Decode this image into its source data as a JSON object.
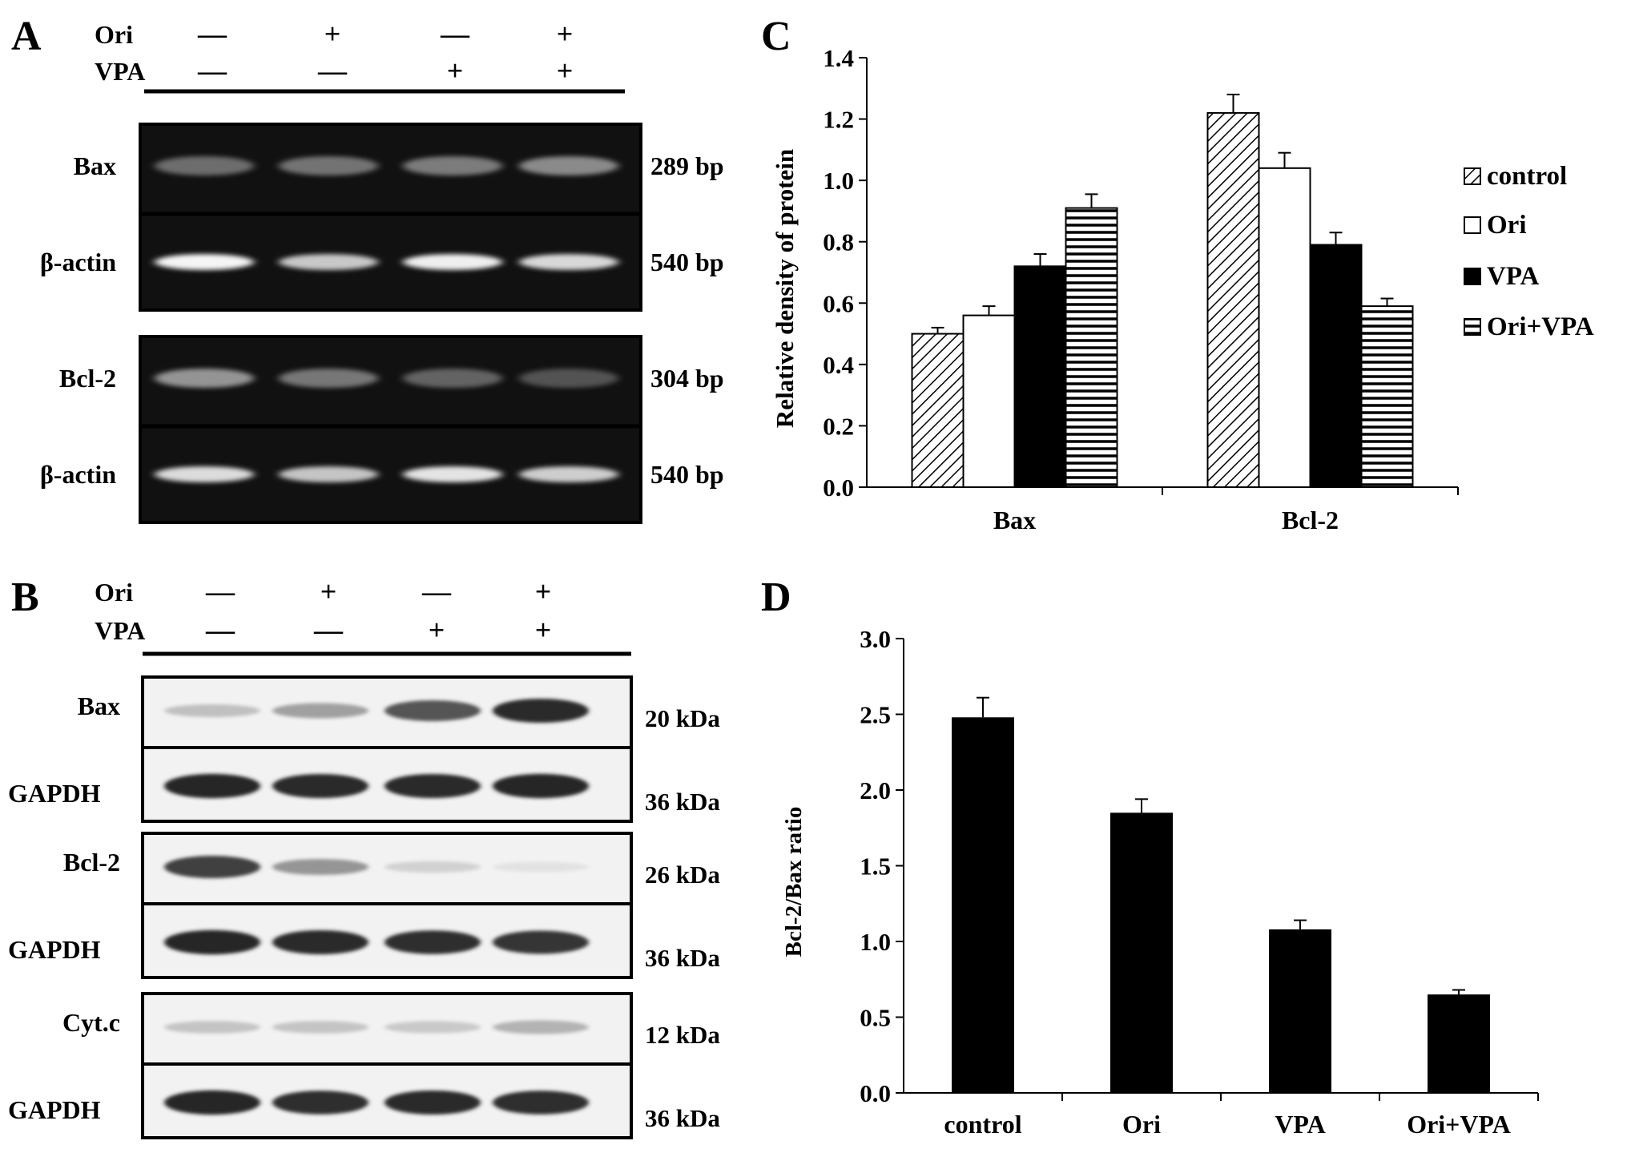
{
  "panels": {
    "A": {
      "letter": "A",
      "treatments": [
        {
          "label": "Ori",
          "signs": [
            "—",
            "+",
            "—",
            "+"
          ]
        },
        {
          "label": "VPA",
          "signs": [
            "—",
            "—",
            "+",
            "+"
          ]
        }
      ],
      "blocks": [
        {
          "rows": [
            {
              "label": "Bax",
              "size": "289 bp",
              "bands": [
                0.25,
                0.28,
                0.33,
                0.4
              ]
            },
            {
              "label": "β-actin",
              "size": "540 bp",
              "bands": [
                0.95,
                0.72,
                0.92,
                0.8
              ]
            }
          ]
        },
        {
          "rows": [
            {
              "label": "Bcl-2",
              "size": "304 bp",
              "bands": [
                0.45,
                0.3,
                0.2,
                0.12
              ]
            },
            {
              "label": "β-actin",
              "size": "540 bp",
              "bands": [
                0.82,
                0.7,
                0.86,
                0.75
              ]
            }
          ]
        }
      ]
    },
    "B": {
      "letter": "B",
      "treatments": [
        {
          "label": "Ori",
          "signs": [
            "—",
            "+",
            "—",
            "+"
          ]
        },
        {
          "label": "VPA",
          "signs": [
            "—",
            "—",
            "+",
            "+"
          ]
        }
      ],
      "blocks": [
        {
          "rows": [
            {
              "label": "Bax",
              "size": "20 kDa",
              "bands": [
                0.2,
                0.35,
                0.7,
                0.9
              ]
            },
            {
              "label": "GAPDH",
              "size": "36 kDa",
              "bands": [
                0.92,
                0.9,
                0.9,
                0.92
              ]
            }
          ]
        },
        {
          "rows": [
            {
              "label": "Bcl-2",
              "size": "26 kDa",
              "bands": [
                0.8,
                0.4,
                0.12,
                0.04
              ]
            },
            {
              "label": "GAPDH",
              "size": "36 kDa",
              "bands": [
                0.92,
                0.9,
                0.88,
                0.85
              ]
            }
          ]
        },
        {
          "rows": [
            {
              "label": "Cyt.c",
              "size": "12 kDa",
              "bands": [
                0.18,
                0.18,
                0.16,
                0.26
              ]
            },
            {
              "label": "GAPDH",
              "size": "36 kDa",
              "bands": [
                0.92,
                0.88,
                0.9,
                0.88
              ]
            }
          ]
        }
      ]
    },
    "C": {
      "letter": "C"
    },
    "D": {
      "letter": "D"
    }
  },
  "chart_data": [
    {
      "panel": "C",
      "type": "bar",
      "categories": [
        "Bax",
        "Bcl-2"
      ],
      "ylabel": "Relative density of protein",
      "ylim": [
        0,
        1.4
      ],
      "yticks": [
        "0.0",
        "0.2",
        "0.4",
        "0.6",
        "0.8",
        "1.0",
        "1.2",
        "1.4"
      ],
      "series": [
        {
          "name": "control",
          "pattern": "diagonal",
          "values": [
            0.5,
            1.22
          ],
          "errors": [
            0.02,
            0.06
          ]
        },
        {
          "name": "Ori",
          "pattern": "white",
          "values": [
            0.56,
            1.04
          ],
          "errors": [
            0.03,
            0.05
          ]
        },
        {
          "name": "VPA",
          "pattern": "black",
          "values": [
            0.72,
            0.79
          ],
          "errors": [
            0.04,
            0.04
          ]
        },
        {
          "name": "Ori+VPA",
          "pattern": "horizontal",
          "values": [
            0.91,
            0.59
          ],
          "errors": [
            0.045,
            0.025
          ]
        }
      ],
      "legend": "right"
    },
    {
      "panel": "D",
      "type": "bar",
      "categories": [
        "control",
        "Ori",
        "VPA",
        "Ori+VPA"
      ],
      "ylabel": "Bcl-2/Bax ratio",
      "ylim": [
        0,
        3.0
      ],
      "yticks": [
        "0.0",
        "0.5",
        "1.0",
        "1.5",
        "2.0",
        "2.5",
        "3.0"
      ],
      "values": [
        2.48,
        1.85,
        1.08,
        0.65
      ],
      "errors": [
        0.13,
        0.09,
        0.06,
        0.03
      ],
      "color": "#000000"
    }
  ]
}
